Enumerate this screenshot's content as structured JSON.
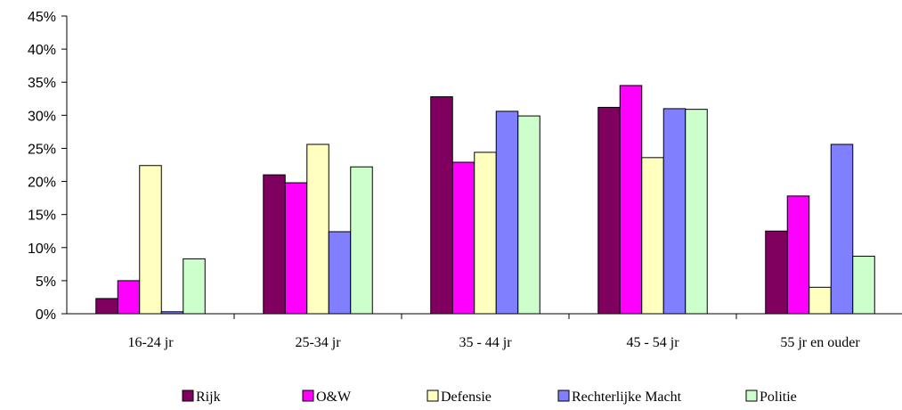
{
  "chart_data": {
    "type": "bar",
    "categories": [
      "16-24 jr",
      "25-34 jr",
      "35 - 44 jr",
      "45 - 54 jr",
      "55 jr en ouder"
    ],
    "series": [
      {
        "name": "Rijk",
        "color": "#800060",
        "values": [
          2.3,
          21.0,
          32.8,
          31.2,
          12.5
        ]
      },
      {
        "name": "O&W",
        "color": "#ff00ff",
        "values": [
          5.0,
          19.8,
          22.9,
          34.5,
          17.8
        ]
      },
      {
        "name": "Defensie",
        "color": "#ffffc0",
        "values": [
          22.4,
          25.6,
          24.4,
          23.6,
          4.0
        ]
      },
      {
        "name": "Rechterlijke Macht",
        "color": "#8080ff",
        "values": [
          0.3,
          12.4,
          30.6,
          31.0,
          25.6
        ]
      },
      {
        "name": "Politie",
        "color": "#ccffcc",
        "values": [
          8.3,
          22.2,
          29.9,
          30.9,
          8.7
        ]
      }
    ],
    "yticks": [
      "0%",
      "5%",
      "10%",
      "15%",
      "20%",
      "25%",
      "30%",
      "35%",
      "40%",
      "45%"
    ],
    "ylim": [
      0,
      45
    ],
    "title": "",
    "xlabel": "",
    "ylabel": "",
    "legend_position": "bottom",
    "grid": false
  }
}
